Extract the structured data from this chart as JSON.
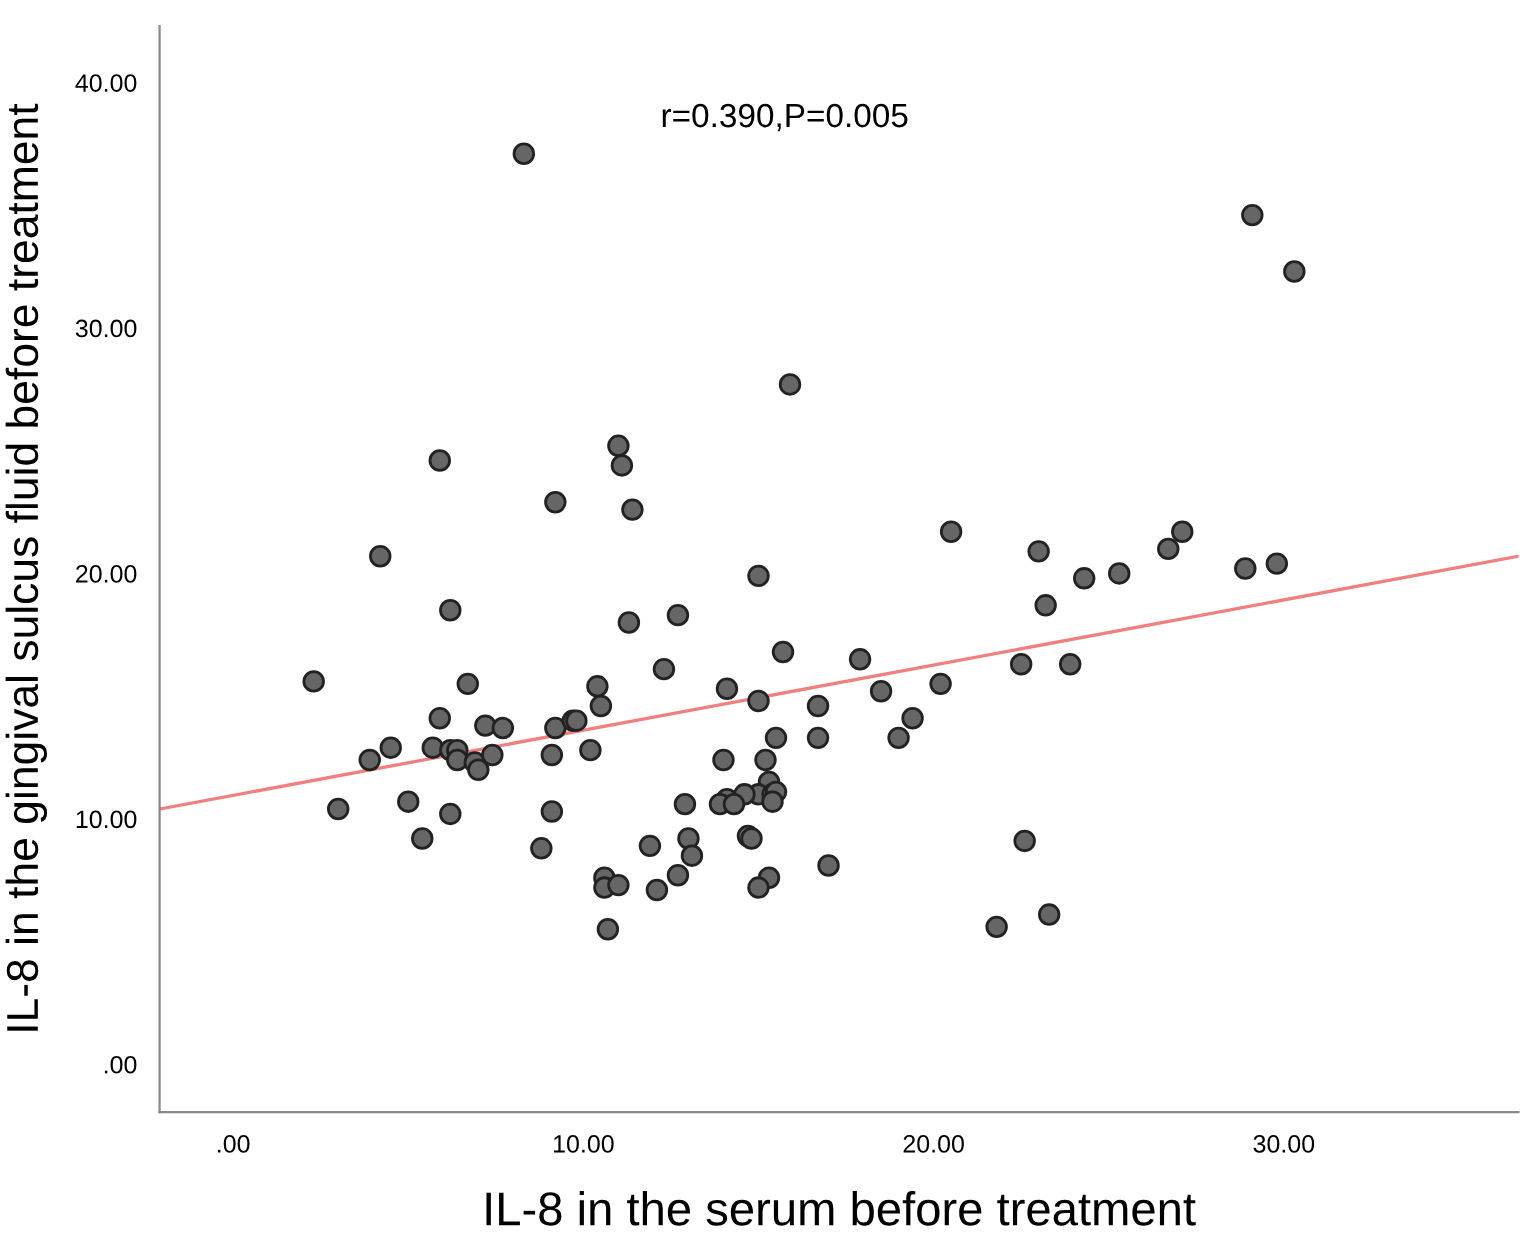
{
  "chart_data": {
    "type": "scatter",
    "xlabel": "IL-8 in the serum before treatment",
    "ylabel": "IL-8 in the gingival sulcus fluid before treatment",
    "annotations": [
      "r=0.390,P=0.005"
    ],
    "xlim": [
      -2.1,
      36.7
    ],
    "ylim": [
      -1.95,
      42.3
    ],
    "xticks": [
      {
        "value": 0,
        "label": ".00"
      },
      {
        "value": 10,
        "label": "10.00"
      },
      {
        "value": 20,
        "label": "20.00"
      },
      {
        "value": 30,
        "label": "30.00"
      }
    ],
    "yticks": [
      {
        "value": 0,
        "label": ".00"
      },
      {
        "value": 10,
        "label": "10.00"
      },
      {
        "value": 20,
        "label": "20.00"
      },
      {
        "value": 30,
        "label": "30.00"
      },
      {
        "value": 40,
        "label": "40.00"
      }
    ],
    "grid": false,
    "legend": false,
    "marker": "circle",
    "series": [
      {
        "color": "#666666",
        "x": [
          5.9,
          11.0,
          11.1,
          9.2,
          11.4,
          4.2,
          6.2,
          11.3,
          2.3,
          6.7,
          10.4,
          10.5,
          5.9,
          7.2,
          7.7,
          9.2,
          9.7,
          9.8,
          4.5,
          3.9,
          5.7,
          6.2,
          6.4,
          6.4,
          6.9,
          7.0,
          7.4,
          9.1,
          10.2,
          3.0,
          5.0,
          6.2,
          9.1,
          5.4,
          8.8,
          10.6,
          10.6,
          11.0,
          10.7,
          15.9,
          20.5,
          15.0,
          12.7,
          15.7,
          17.9,
          12.3,
          14.1,
          15.0,
          16.7,
          18.5,
          20.2,
          19.4,
          19.0,
          16.7,
          15.5,
          14.0,
          15.2,
          15.3,
          15.0,
          14.6,
          14.1,
          13.9,
          14.3,
          15.4,
          15.5,
          15.4,
          12.9,
          13.0,
          14.7,
          14.8,
          13.1,
          11.9,
          12.7,
          17.0,
          15.3,
          15.0,
          12.1,
          23.0,
          27.1,
          26.7,
          24.3,
          25.3,
          28.9,
          29.8,
          23.2,
          22.5,
          23.9,
          22.6,
          23.3,
          21.8,
          8.3,
          29.1,
          30.3
        ],
        "values": [
          24.6,
          25.2,
          24.4,
          22.9,
          22.6,
          20.7,
          18.5,
          18.0,
          15.6,
          15.5,
          15.4,
          14.6,
          14.1,
          13.8,
          13.7,
          13.7,
          14.0,
          14.0,
          12.9,
          12.4,
          12.9,
          12.8,
          12.8,
          12.4,
          12.3,
          12.0,
          12.6,
          12.6,
          12.8,
          10.4,
          10.7,
          10.2,
          10.3,
          9.2,
          8.8,
          7.6,
          7.2,
          7.3,
          5.5,
          27.7,
          21.7,
          19.9,
          18.3,
          16.8,
          16.5,
          16.1,
          15.3,
          14.8,
          14.6,
          15.2,
          15.5,
          14.1,
          13.3,
          13.3,
          13.3,
          12.4,
          12.4,
          11.5,
          11.0,
          11.0,
          10.8,
          10.6,
          10.6,
          11.0,
          11.1,
          10.7,
          10.6,
          9.2,
          9.3,
          9.2,
          8.5,
          8.9,
          7.7,
          8.1,
          7.6,
          7.2,
          7.1,
          20.9,
          21.7,
          21.0,
          19.8,
          20.0,
          20.2,
          20.4,
          18.7,
          16.3,
          16.3,
          9.1,
          6.1,
          5.6,
          37.1,
          34.6,
          32.3
        ]
      },
      {
        "type": "line",
        "color": "#f08080",
        "line_style": "solid",
        "marker": "none",
        "x": [
          -2.1,
          36.7
        ],
        "values": [
          10.4,
          20.7
        ]
      }
    ]
  }
}
